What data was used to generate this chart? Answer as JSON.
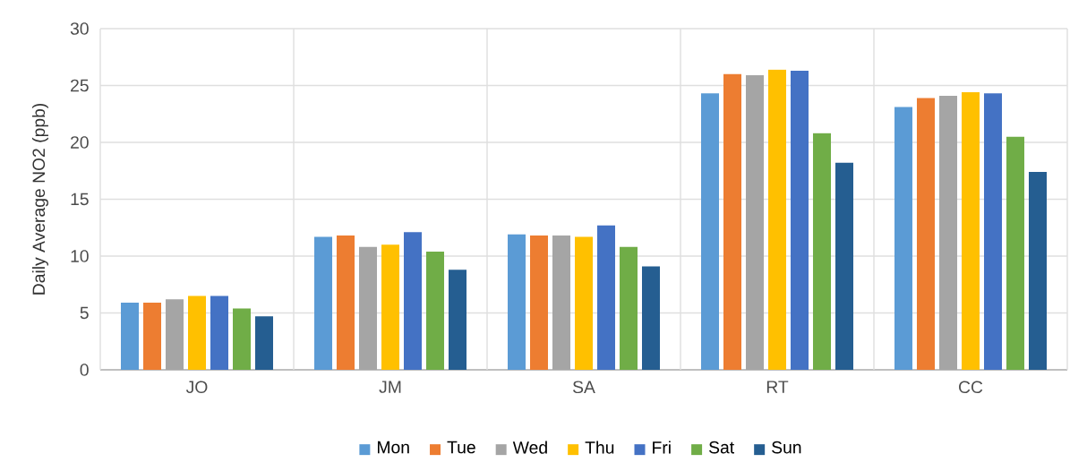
{
  "chart_data": {
    "type": "bar",
    "ylabel": "Daily Average NO2 (ppb)",
    "categories": [
      "JO",
      "JM",
      "SA",
      "RT",
      "CC"
    ],
    "series": [
      {
        "name": "Mon",
        "color": "#5b9bd5",
        "values": [
          5.9,
          11.7,
          11.9,
          24.3,
          23.1
        ]
      },
      {
        "name": "Tue",
        "color": "#ed7d31",
        "values": [
          5.9,
          11.8,
          11.8,
          26.0,
          23.9
        ]
      },
      {
        "name": "Wed",
        "color": "#a5a5a5",
        "values": [
          6.2,
          10.8,
          11.8,
          25.9,
          24.1
        ]
      },
      {
        "name": "Thu",
        "color": "#ffc000",
        "values": [
          6.5,
          11.0,
          11.7,
          26.4,
          24.4
        ]
      },
      {
        "name": "Fri",
        "color": "#4472c4",
        "values": [
          6.5,
          12.1,
          12.7,
          26.3,
          24.3
        ]
      },
      {
        "name": "Sat",
        "color": "#70ad47",
        "values": [
          5.4,
          10.4,
          10.8,
          20.8,
          20.5
        ]
      },
      {
        "name": "Sun",
        "color": "#255e91",
        "values": [
          4.7,
          8.8,
          9.1,
          18.2,
          17.4
        ]
      }
    ],
    "ylim": [
      0,
      30
    ],
    "yticks": [
      0,
      5,
      10,
      15,
      20,
      25,
      30
    ],
    "grid": true,
    "legend": "bottom"
  }
}
